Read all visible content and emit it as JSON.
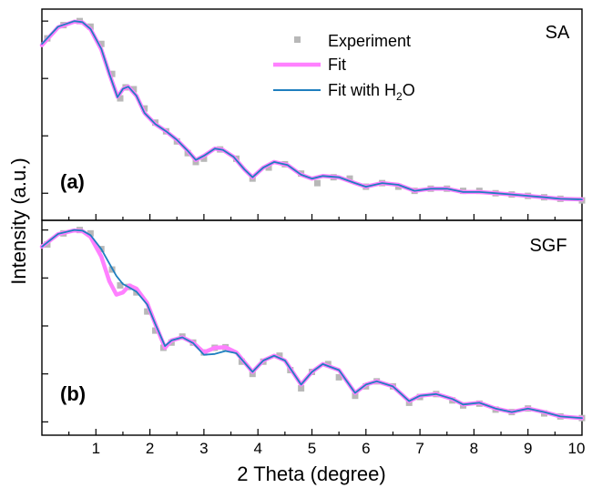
{
  "figure": {
    "xlabel": "2 Theta (degree)",
    "ylabel": "Intensity (a.u.)"
  },
  "legend": {
    "experiment": "Experiment",
    "fit": "Fit",
    "fit_water_prefix": "Fit with H",
    "fit_water_sub": "2",
    "fit_water_suffix": "O"
  },
  "colors": {
    "experiment": "#b8b8b8",
    "fit": "#ff80ff",
    "fit_water": "#1f7fbf",
    "blue_overlay": "#4a6fe3"
  },
  "chart_data": [
    {
      "type": "line",
      "panel_letter": "(a)",
      "sample_label": "SA",
      "xlabel": "2 Theta (degree)",
      "ylabel": "Intensity (a.u.)",
      "xlim": [
        0,
        10
      ],
      "y_scale": "log",
      "y_tick_labels": "none",
      "x_ticks": [
        1,
        2,
        3,
        4,
        5,
        6,
        7,
        8,
        9,
        10
      ],
      "legend_position": "top-center",
      "series": [
        {
          "name": "Experiment",
          "style": "squares",
          "x": [
            0.1,
            0.4,
            0.7,
            0.9,
            1.1,
            1.3,
            1.45,
            1.55,
            1.7,
            1.9,
            2.1,
            2.3,
            2.5,
            2.7,
            2.85,
            3.0,
            3.3,
            3.6,
            3.9,
            4.2,
            4.5,
            4.8,
            5.1,
            5.4,
            5.7,
            6.0,
            6.3,
            6.6,
            6.9,
            7.2,
            7.5,
            7.8,
            8.1,
            8.4,
            8.7,
            9.0,
            9.3,
            9.6,
            10.0
          ],
          "y": [
            0.5,
            0.85,
            1.0,
            0.8,
            0.4,
            0.12,
            0.045,
            0.07,
            0.065,
            0.03,
            0.017,
            0.012,
            0.008,
            0.005,
            0.0035,
            0.004,
            0.0058,
            0.004,
            0.0018,
            0.0028,
            0.0032,
            0.0022,
            0.0015,
            0.0019,
            0.0018,
            0.0013,
            0.0015,
            0.0013,
            0.0011,
            0.0012,
            0.0012,
            0.0011,
            0.0011,
            0.001,
            0.00095,
            0.0009,
            0.00085,
            0.0008,
            0.00075
          ]
        },
        {
          "name": "Fit",
          "style": "line",
          "x": [
            0.0,
            0.3,
            0.6,
            0.75,
            0.9,
            1.1,
            1.25,
            1.4,
            1.5,
            1.6,
            1.75,
            1.9,
            2.1,
            2.3,
            2.5,
            2.7,
            2.85,
            3.0,
            3.2,
            3.35,
            3.55,
            3.75,
            3.9,
            4.1,
            4.3,
            4.55,
            4.8,
            5.0,
            5.2,
            5.5,
            5.8,
            6.0,
            6.3,
            6.6,
            6.9,
            7.2,
            7.5,
            7.8,
            8.1,
            8.4,
            8.7,
            9.0,
            9.3,
            9.6,
            10.0
          ],
          "y": [
            0.38,
            0.78,
            0.98,
            0.95,
            0.72,
            0.32,
            0.12,
            0.048,
            0.065,
            0.072,
            0.05,
            0.025,
            0.016,
            0.012,
            0.0085,
            0.0055,
            0.0038,
            0.0045,
            0.006,
            0.0057,
            0.0043,
            0.0026,
            0.0019,
            0.0028,
            0.0035,
            0.0031,
            0.0021,
            0.0018,
            0.002,
            0.0019,
            0.0015,
            0.0013,
            0.0015,
            0.0014,
            0.0011,
            0.0012,
            0.0012,
            0.00105,
            0.00105,
            0.001,
            0.00095,
            0.0009,
            0.00085,
            0.0008,
            0.00078
          ]
        },
        {
          "name": "Fit with H2O",
          "style": "line",
          "x": [
            0.0,
            0.3,
            0.6,
            0.75,
            0.9,
            1.1,
            1.25,
            1.4,
            1.5,
            1.6,
            1.75,
            1.9,
            2.1,
            2.3,
            2.5,
            2.7,
            2.85,
            3.0,
            3.2,
            3.35,
            3.55,
            3.75,
            3.9,
            4.1,
            4.3,
            4.55,
            4.8,
            5.0,
            5.2,
            5.5,
            5.8,
            6.0,
            6.3,
            6.6,
            6.9,
            7.2,
            7.5,
            7.8,
            8.1,
            8.4,
            8.7,
            9.0,
            9.3,
            9.6,
            10.0
          ],
          "y": [
            0.4,
            0.8,
            1.0,
            0.96,
            0.73,
            0.33,
            0.12,
            0.047,
            0.066,
            0.072,
            0.05,
            0.025,
            0.016,
            0.012,
            0.0085,
            0.0055,
            0.0038,
            0.0045,
            0.006,
            0.0057,
            0.0043,
            0.0026,
            0.0019,
            0.0028,
            0.0035,
            0.0031,
            0.0021,
            0.0018,
            0.002,
            0.0019,
            0.0015,
            0.0013,
            0.0015,
            0.0014,
            0.0011,
            0.0012,
            0.0012,
            0.00105,
            0.00105,
            0.001,
            0.00095,
            0.0009,
            0.00085,
            0.0008,
            0.00078
          ]
        }
      ]
    },
    {
      "type": "line",
      "panel_letter": "(b)",
      "sample_label": "SGF",
      "xlabel": "2 Theta (degree)",
      "ylabel": "Intensity (a.u.)",
      "xlim": [
        0,
        10
      ],
      "y_scale": "log",
      "y_tick_labels": "none",
      "x_ticks": [
        1,
        2,
        3,
        4,
        5,
        6,
        7,
        8,
        9,
        10
      ],
      "series": [
        {
          "name": "Experiment",
          "style": "squares",
          "x": [
            0.1,
            0.4,
            0.7,
            0.9,
            1.1,
            1.3,
            1.45,
            1.6,
            1.75,
            1.95,
            2.1,
            2.25,
            2.4,
            2.6,
            2.8,
            3.0,
            3.2,
            3.4,
            3.7,
            3.9,
            4.1,
            4.4,
            4.6,
            4.8,
            5.0,
            5.3,
            5.5,
            5.8,
            6.0,
            6.2,
            6.5,
            6.8,
            7.0,
            7.3,
            7.6,
            7.8,
            8.1,
            8.4,
            8.7,
            9.0,
            9.3,
            9.6,
            10.0
          ],
          "y": [
            0.5,
            0.85,
            1.0,
            0.85,
            0.4,
            0.15,
            0.07,
            0.065,
            0.05,
            0.02,
            0.008,
            0.0035,
            0.0045,
            0.006,
            0.0045,
            0.0028,
            0.0035,
            0.0036,
            0.0018,
            0.001,
            0.0018,
            0.0024,
            0.0012,
            0.0005,
            0.0011,
            0.0016,
            0.00085,
            0.00035,
            0.00055,
            0.0007,
            0.00055,
            0.00025,
            0.00033,
            0.00038,
            0.00028,
            0.00022,
            0.00024,
            0.00018,
            0.00016,
            0.00019,
            0.00015,
            0.00013,
            0.00012
          ]
        },
        {
          "name": "Fit",
          "style": "line",
          "x": [
            0.0,
            0.3,
            0.6,
            0.75,
            0.9,
            1.1,
            1.25,
            1.38,
            1.5,
            1.62,
            1.75,
            1.95,
            2.1,
            2.28,
            2.4,
            2.6,
            2.8,
            3.0,
            3.2,
            3.4,
            3.6,
            3.9,
            4.1,
            4.3,
            4.5,
            4.8,
            5.0,
            5.2,
            5.5,
            5.8,
            6.0,
            6.2,
            6.5,
            6.8,
            7.0,
            7.3,
            7.6,
            7.8,
            8.1,
            8.4,
            8.7,
            9.0,
            9.3,
            9.6,
            10.0
          ],
          "y": [
            0.45,
            0.82,
            0.98,
            0.95,
            0.72,
            0.28,
            0.085,
            0.045,
            0.05,
            0.07,
            0.06,
            0.03,
            0.011,
            0.0035,
            0.005,
            0.0058,
            0.0045,
            0.0028,
            0.0035,
            0.0036,
            0.0028,
            0.0011,
            0.0019,
            0.0024,
            0.0019,
            0.0006,
            0.0011,
            0.0016,
            0.0012,
            0.0004,
            0.0006,
            0.0007,
            0.00055,
            0.00027,
            0.00035,
            0.00038,
            0.0003,
            0.00023,
            0.00025,
            0.00019,
            0.00016,
            0.00019,
            0.00016,
            0.00013,
            0.00012
          ]
        },
        {
          "name": "Fit with H2O",
          "style": "line",
          "x": [
            0.0,
            0.3,
            0.6,
            0.75,
            0.9,
            1.1,
            1.25,
            1.38,
            1.5,
            1.62,
            1.75,
            1.95,
            2.1,
            2.28,
            2.4,
            2.6,
            2.8,
            3.0,
            3.2,
            3.4,
            3.6,
            3.9,
            4.1,
            4.3,
            4.5,
            4.8,
            5.0,
            5.2,
            5.5,
            5.8,
            6.0,
            6.2,
            6.5,
            6.8,
            7.0,
            7.3,
            7.6,
            7.8,
            8.1,
            8.4,
            8.7,
            9.0,
            9.3,
            9.6,
            10.0
          ],
          "y": [
            0.45,
            0.83,
            1.0,
            0.97,
            0.78,
            0.4,
            0.2,
            0.11,
            0.075,
            0.063,
            0.052,
            0.028,
            0.011,
            0.0038,
            0.005,
            0.0058,
            0.0044,
            0.0025,
            0.0026,
            0.003,
            0.0027,
            0.0011,
            0.0019,
            0.0024,
            0.0019,
            0.0006,
            0.0011,
            0.0016,
            0.0012,
            0.0004,
            0.0006,
            0.0007,
            0.00055,
            0.00027,
            0.00035,
            0.00038,
            0.0003,
            0.00023,
            0.00025,
            0.00019,
            0.00016,
            0.00019,
            0.00016,
            0.00013,
            0.00012
          ]
        }
      ]
    }
  ]
}
